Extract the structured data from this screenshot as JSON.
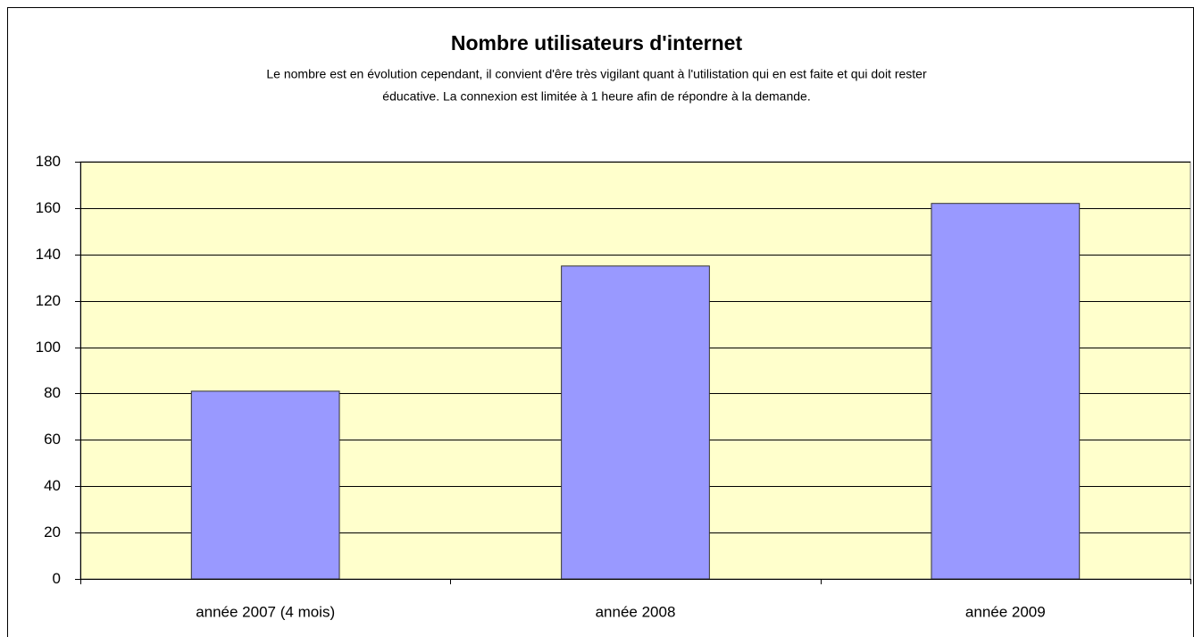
{
  "chart_data": {
    "type": "bar",
    "title": "Nombre utilisateurs d'internet",
    "subtitle": [
      "Le nombre est en évolution cependant, il convient d'êre très vigilant quant à l'utilistation qui en est faite et qui doit rester",
      "éducative. La connexion est limitée à 1 heure afin de répondre à la demande."
    ],
    "categories": [
      "année 2007 (4 mois)",
      "année 2008",
      "année 2009"
    ],
    "values": [
      81,
      135,
      162
    ],
    "color": "#9999ff",
    "ylim": [
      0,
      180
    ],
    "yticks": [
      0,
      20,
      40,
      60,
      80,
      100,
      120,
      140,
      160,
      180
    ],
    "grid": true
  }
}
